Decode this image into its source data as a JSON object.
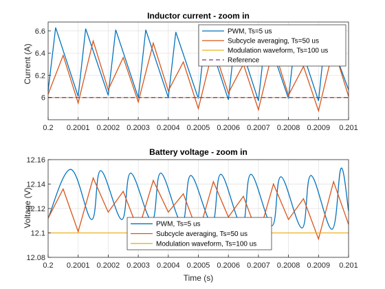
{
  "chart_data": [
    {
      "type": "line",
      "title": "Inductor current - zoom in",
      "xlabel": "",
      "ylabel": "Current (A)",
      "xlim": [
        0.2,
        0.201
      ],
      "ylim": [
        5.8,
        6.68
      ],
      "xticks": [
        "0.2",
        "0.2001",
        "0.2002",
        "0.2003",
        "0.2004",
        "0.2005",
        "0.2006",
        "0.2007",
        "0.2008",
        "0.2009",
        "0.201"
      ],
      "yticks": [
        "6",
        "6.2",
        "6.4",
        "6.6"
      ],
      "grid": true,
      "legend_position": "top-right",
      "series": [
        {
          "name": "PWM, Ts=5 us",
          "color": "#0072BD",
          "x": [
            0.2,
            0.200025,
            0.2001,
            0.200125,
            0.2002,
            0.200225,
            0.2003,
            0.200325,
            0.2004,
            0.200425,
            0.2005,
            0.200525,
            0.2006,
            0.200625,
            0.2007,
            0.200725,
            0.2008,
            0.200825,
            0.2009,
            0.200925,
            0.201
          ],
          "y": [
            6.06,
            6.63,
            6.01,
            6.62,
            6.02,
            6.61,
            6.0,
            6.61,
            6.0,
            6.59,
            5.99,
            6.6,
            5.98,
            6.6,
            5.97,
            6.59,
            5.99,
            6.59,
            5.97,
            6.62,
            6.07
          ]
        },
        {
          "name": "Subcycle averaging, Ts=50 us",
          "color": "#D95319",
          "x": [
            0.2,
            0.20005,
            0.2001,
            0.20015,
            0.2002,
            0.20025,
            0.2003,
            0.20035,
            0.2004,
            0.20045,
            0.2005,
            0.20055,
            0.2006,
            0.20065,
            0.2007,
            0.20075,
            0.2008,
            0.20085,
            0.2009,
            0.20095,
            0.201
          ],
          "y": [
            6.03,
            6.38,
            5.95,
            6.51,
            6.07,
            6.36,
            5.96,
            6.49,
            6.06,
            6.32,
            5.9,
            6.45,
            6.04,
            6.3,
            5.89,
            6.45,
            6.02,
            6.28,
            5.88,
            6.45,
            6.01
          ]
        },
        {
          "name": "Modulation waveform, Ts=100 us",
          "color": "#EDB120",
          "x": [
            0.2,
            0.201
          ],
          "y": [
            6.0,
            6.0
          ]
        },
        {
          "name": "Reference",
          "color": "#7E2F8E",
          "dashed": true,
          "x": [
            0.2,
            0.201
          ],
          "y": [
            6.0,
            6.0
          ]
        }
      ]
    },
    {
      "type": "line",
      "title": "Battery voltage - zoom in",
      "xlabel": "Time (s)",
      "ylabel": "Voltage (V)",
      "xlim": [
        0.2,
        0.201
      ],
      "ylim": [
        12.08,
        12.16
      ],
      "xticks": [
        "0.2",
        "0.2001",
        "0.2002",
        "0.2003",
        "0.2004",
        "0.2005",
        "0.2006",
        "0.2007",
        "0.2008",
        "0.2009",
        "0.201"
      ],
      "yticks": [
        "12.08",
        "12.1",
        "12.12",
        "12.14",
        "12.16"
      ],
      "grid": true,
      "legend_position": "bottom-center",
      "series": [
        {
          "name": "PWM, Ts=5 us",
          "color": "#0072BD",
          "smooth": true,
          "x": [
            0.2,
            0.200075,
            0.200145,
            0.200175,
            0.200245,
            0.200275,
            0.200345,
            0.200375,
            0.200445,
            0.200475,
            0.200545,
            0.200575,
            0.200645,
            0.200675,
            0.200745,
            0.200775,
            0.200845,
            0.200875,
            0.200945,
            0.200975,
            0.201
          ],
          "y": [
            12.112,
            12.152,
            12.111,
            12.151,
            12.111,
            12.149,
            12.11,
            12.149,
            12.108,
            12.147,
            12.108,
            12.148,
            12.106,
            12.148,
            12.106,
            12.146,
            12.104,
            12.147,
            12.103,
            12.153,
            12.118
          ]
        },
        {
          "name": "Subcycle averaging, Ts=50 us",
          "color": "#D95319",
          "x": [
            0.2,
            0.20005,
            0.2001,
            0.20015,
            0.2002,
            0.20025,
            0.2003,
            0.20035,
            0.2004,
            0.20045,
            0.2005,
            0.20055,
            0.2006,
            0.20065,
            0.2007,
            0.20075,
            0.2008,
            0.20085,
            0.2009,
            0.20095,
            0.201
          ],
          "y": [
            12.112,
            12.136,
            12.101,
            12.145,
            12.117,
            12.134,
            12.102,
            12.143,
            12.117,
            12.132,
            12.099,
            12.142,
            12.113,
            12.13,
            12.097,
            12.14,
            12.111,
            12.128,
            12.095,
            12.142,
            12.107
          ]
        },
        {
          "name": "Modulation waveform, Ts=100 us",
          "color": "#EDB120",
          "x": [
            0.2,
            0.201
          ],
          "y": [
            12.1,
            12.1
          ]
        }
      ]
    }
  ]
}
